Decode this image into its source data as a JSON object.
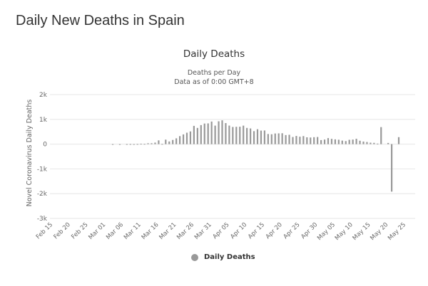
{
  "page": {
    "title": "Daily New Deaths in Spain"
  },
  "chart_data": {
    "type": "bar",
    "title": "Daily Deaths",
    "subtitle": "Deaths per Day",
    "subtitle2": "Data as of 0:00 GMT+8",
    "xlabel": "",
    "ylabel": "Novel Coronavirus Daily Deaths",
    "ylim": [
      -3000,
      2000
    ],
    "yticks": [
      2000,
      1000,
      0,
      -1000,
      -2000,
      -3000
    ],
    "ytick_labels": [
      "2k",
      "1k",
      "0",
      "-1k",
      "-2k",
      "-3k"
    ],
    "grid": true,
    "legend": "bottom-center",
    "legend_entries": [
      "Daily Deaths"
    ],
    "color": "#999999",
    "start_date": "Feb 15",
    "xtick_labels": [
      "Feb 15",
      "Feb 20",
      "Feb 25",
      "Mar 01",
      "Mar 06",
      "Mar 11",
      "Mar 16",
      "Mar 21",
      "Mar 26",
      "Mar 31",
      "Apr 05",
      "Apr 10",
      "Apr 15",
      "Apr 20",
      "Apr 25",
      "Apr 30",
      "May 05",
      "May 10",
      "May 15",
      "May 20",
      "May 25"
    ],
    "series": [
      {
        "name": "Daily Deaths",
        "values": [
          0,
          0,
          0,
          0,
          0,
          0,
          0,
          0,
          0,
          0,
          0,
          0,
          0,
          0,
          0,
          0,
          0,
          1,
          0,
          1,
          0,
          3,
          5,
          2,
          7,
          17,
          11,
          36,
          37,
          62,
          152,
          9,
          182,
          107,
          169,
          235,
          324,
          394,
          462,
          514,
          738,
          655,
          769,
          832,
          838,
          913,
          748,
          923,
          961,
          850,
          749,
          694,
          700,
          704,
          747,
          655,
          634,
          525,
          603,
          547,
          551,
          410,
          399,
          430,
          435,
          440,
          367,
          378,
          288,
          331,
          301,
          325,
          276,
          268,
          281,
          288,
          164,
          185,
          244,
          213,
          194,
          179,
          143,
          123,
          176,
          184,
          217,
          138,
          104,
          87,
          59,
          52,
          22,
          688,
          0,
          48,
          -1918,
          0,
          283
        ]
      }
    ]
  }
}
